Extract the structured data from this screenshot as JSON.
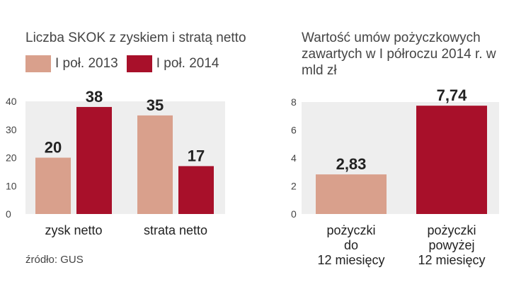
{
  "colors": {
    "series_2013": "#d9a08c",
    "series_2014": "#a8102a",
    "panel": "#eeeeee"
  },
  "legend": {
    "item1": "I poł. 2013",
    "item2": "I poł. 2014"
  },
  "source": "źródło: GUS",
  "chart_data": [
    {
      "type": "bar",
      "title": "Liczba SKOK z zyskiem i stratą netto",
      "categories": [
        "zysk netto",
        "strata netto"
      ],
      "series": [
        {
          "name": "I poł. 2013",
          "values": [
            20,
            35
          ],
          "labels": [
            "20",
            "35"
          ]
        },
        {
          "name": "I poł. 2014",
          "values": [
            38,
            17
          ],
          "labels": [
            "38",
            "17"
          ]
        }
      ],
      "ylim": [
        0,
        40
      ],
      "yticks": [
        0,
        10,
        20,
        30,
        40
      ],
      "xlabel": "",
      "ylabel": "",
      "grid": false,
      "legend": "top-left"
    },
    {
      "type": "bar",
      "title": "Wartość umów pożyczkowych zawartych w I półroczu 2014 r. w mld zł",
      "categories": [
        "pożyczki do 12 miesięcy",
        "pożyczki powyżej 12 miesięcy"
      ],
      "category_lines": [
        [
          "pożyczki",
          "do",
          "12 miesięcy"
        ],
        [
          "pożyczki",
          "powyżej",
          "12 miesięcy"
        ]
      ],
      "values": [
        2.83,
        7.74
      ],
      "labels": [
        "2,83",
        "7,74"
      ],
      "ylim": [
        0,
        8
      ],
      "yticks": [
        0,
        2,
        4,
        6,
        8
      ],
      "xlabel": "",
      "ylabel": "",
      "grid": false
    }
  ]
}
